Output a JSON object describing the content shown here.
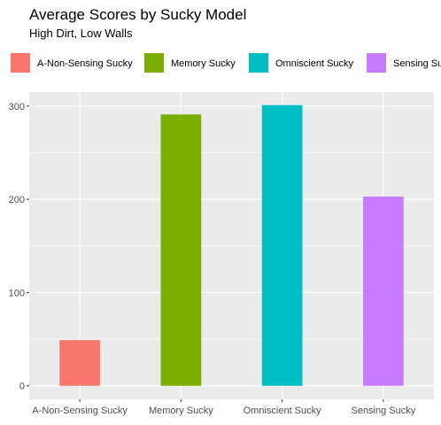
{
  "chart_data": {
    "type": "bar",
    "title": "Average Scores by Sucky Model",
    "subtitle": "High Dirt, Low Walls",
    "xlabel": "",
    "ylabel": "",
    "categories": [
      "A-Non-Sensing Sucky",
      "Memory Sucky",
      "Omniscient Sucky",
      "Sensing Sucky"
    ],
    "values": [
      49,
      291,
      301,
      203
    ],
    "colors": [
      "#F8766D",
      "#7CAE00",
      "#00BFC4",
      "#C77CFF"
    ],
    "ylim": [
      -14.5,
      315
    ],
    "yticks": [
      0,
      100,
      200,
      300
    ],
    "grid": true,
    "legend_position": "top",
    "legend": [
      "A-Non-Sensing Sucky",
      "Memory Sucky",
      "Omniscient Sucky",
      "Sensing Sucky"
    ]
  }
}
